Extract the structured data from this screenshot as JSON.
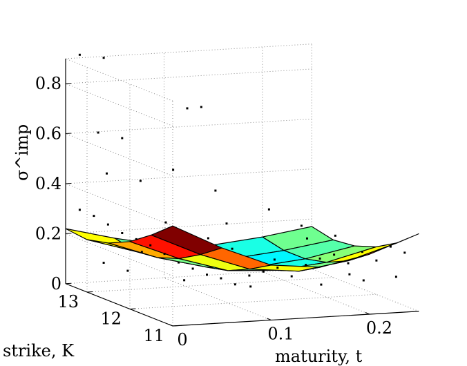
{
  "chart_data": {
    "type": "surface3d",
    "xlabel": "maturity, t",
    "ylabel": "strike, K",
    "zlabel": "σ^imp",
    "xticks": [
      0,
      0.1,
      0.2
    ],
    "xtick_labels": [
      "0",
      "0.1",
      "0.2"
    ],
    "yticks": [
      11,
      12,
      13
    ],
    "ytick_labels": [
      "11",
      "12",
      "13"
    ],
    "zticks": [
      0,
      0.2,
      0.4,
      0.6,
      0.8
    ],
    "ztick_labels": [
      "0",
      "0.2",
      "0.4",
      "0.6",
      "0.8"
    ],
    "xlim": [
      0,
      0.25
    ],
    "ylim": [
      11,
      13.5
    ],
    "zlim": [
      0,
      0.9
    ],
    "grid": true,
    "surface": {
      "description": "fitted implied volatility smile surface",
      "colormap": "jet",
      "strikes": [
        11.0,
        11.5,
        12.0,
        12.5,
        13.0,
        13.5
      ],
      "maturities": [
        0.0,
        0.05,
        0.1,
        0.15,
        0.2,
        0.25
      ],
      "sigma": [
        [
          0.4,
          0.3,
          0.22,
          0.2,
          0.24,
          0.31
        ],
        [
          0.33,
          0.24,
          0.17,
          0.15,
          0.18,
          0.24
        ],
        [
          0.27,
          0.19,
          0.13,
          0.12,
          0.14,
          0.19
        ],
        [
          0.23,
          0.16,
          0.11,
          0.1,
          0.12,
          0.16
        ],
        [
          0.21,
          0.15,
          0.11,
          0.1,
          0.12,
          0.15
        ],
        [
          0.22,
          0.17,
          0.13,
          0.12,
          0.14,
          0.17
        ]
      ]
    },
    "scatter": {
      "description": "observed market implied volatilities",
      "marker": "dot",
      "points": [
        [
          0.01,
          13.4,
          0.92
        ],
        [
          0.03,
          13.3,
          0.91
        ],
        [
          0.02,
          13.2,
          0.62
        ],
        [
          0.04,
          13.1,
          0.6
        ],
        [
          0.02,
          13.0,
          0.47
        ],
        [
          0.05,
          12.9,
          0.44
        ],
        [
          0.08,
          12.5,
          0.75
        ],
        [
          0.09,
          12.4,
          0.76
        ],
        [
          0.07,
          12.6,
          0.5
        ],
        [
          0.1,
          12.3,
          0.43
        ],
        [
          0.01,
          13.4,
          0.3
        ],
        [
          0.02,
          13.3,
          0.28
        ],
        [
          0.03,
          13.2,
          0.25
        ],
        [
          0.04,
          13.1,
          0.22
        ],
        [
          0.05,
          13.0,
          0.2
        ],
        [
          0.06,
          12.9,
          0.18
        ],
        [
          0.07,
          12.8,
          0.15
        ],
        [
          0.08,
          12.7,
          0.12
        ],
        [
          0.09,
          12.6,
          0.1
        ],
        [
          0.1,
          12.5,
          0.08
        ],
        [
          0.11,
          12.4,
          0.07
        ],
        [
          0.12,
          12.3,
          0.05
        ],
        [
          0.13,
          12.2,
          0.09
        ],
        [
          0.14,
          12.1,
          0.11
        ],
        [
          0.15,
          12.0,
          0.13
        ],
        [
          0.16,
          11.9,
          0.1
        ],
        [
          0.17,
          11.8,
          0.15
        ],
        [
          0.18,
          11.7,
          0.18
        ],
        [
          0.19,
          11.6,
          0.2
        ],
        [
          0.2,
          11.5,
          0.17
        ],
        [
          0.21,
          11.4,
          0.22
        ],
        [
          0.22,
          11.3,
          0.19
        ],
        [
          0.23,
          11.2,
          0.25
        ],
        [
          0.24,
          11.1,
          0.23
        ],
        [
          0.15,
          12.2,
          0.35
        ],
        [
          0.17,
          11.9,
          0.3
        ],
        [
          0.12,
          12.5,
          0.28
        ],
        [
          0.06,
          13.1,
          0.14
        ],
        [
          0.03,
          13.3,
          0.09
        ],
        [
          0.05,
          13.2,
          0.06
        ],
        [
          0.09,
          12.8,
          0.04
        ],
        [
          0.14,
          12.4,
          0.03
        ],
        [
          0.19,
          11.9,
          0.06
        ],
        [
          0.22,
          11.6,
          0.09
        ],
        [
          0.24,
          11.3,
          0.12
        ],
        [
          0.2,
          11.8,
          0.26
        ],
        [
          0.18,
          12.0,
          0.24
        ],
        [
          0.11,
          12.7,
          0.21
        ],
        [
          0.08,
          13.0,
          0.26
        ],
        [
          0.13,
          12.6,
          0.17
        ],
        [
          0.16,
          12.3,
          0.14
        ],
        [
          0.21,
          11.7,
          0.11
        ]
      ]
    }
  }
}
